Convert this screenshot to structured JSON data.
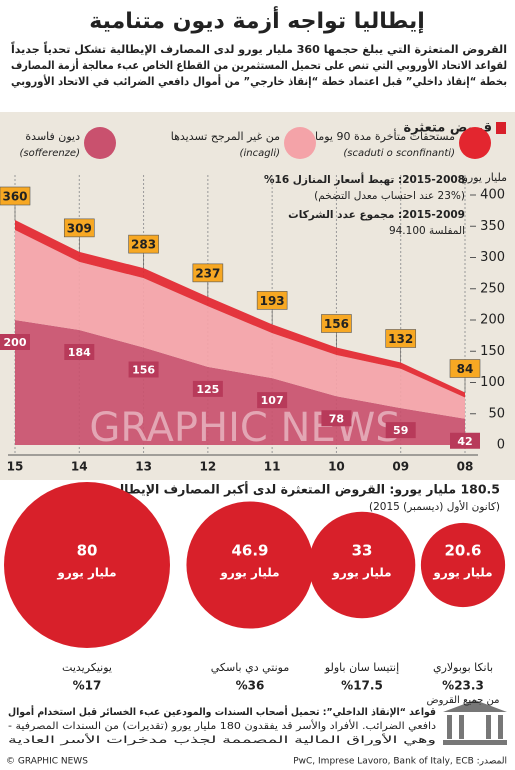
{
  "title": "إيطاليا تواجه أزمة ديون متنامية",
  "intro": [
    "القروض المتعثرة التي يبلغ حجمها 360 مليار يورو لدى المصارف الإيطالية تشكل تحدياً جديداً",
    "لقواعد الاتحاد الأوروبي التي تنص على تحميل المستثمرين من القطاع الخاص عبء معالجة أزمة المصارف",
    "بخطة “إنقاذ داخلي” قبل اعتماد خطة “إنقاذ خارجي” من أموال دافعي الضرائب في الاتحاد الأوروبي"
  ],
  "watermark": "GRAPHIC NEWS",
  "chart_data": [
    {
      "type": "area",
      "title": "قروض متعثرة",
      "y_label": "مليار يورو",
      "categories": [
        "15",
        "14",
        "13",
        "12",
        "11",
        "10",
        "09",
        "08"
      ],
      "series": [
        {
          "name": "ديون فاسدة",
          "name_it": "(sofferenze)",
          "color": "#c9516e",
          "values": [
            200,
            184,
            156,
            125,
            107,
            78,
            59,
            42
          ]
        },
        {
          "name": "من غير المرجح تسديدها",
          "name_it": "(incagli)",
          "color": "#f4a3a8",
          "values": [
            144,
            109,
            111,
            97,
            72,
            66,
            63,
            34
          ]
        },
        {
          "name": "مستحقات متأخرة مدة 90 يوما",
          "name_it": "(scaduti o sconfinanti)",
          "color": "#e3262f",
          "values": [
            16,
            16,
            16,
            15,
            14,
            12,
            10,
            8
          ]
        }
      ],
      "totals": [
        360,
        309,
        283,
        237,
        193,
        156,
        132,
        84
      ],
      "ylim": [
        0,
        400
      ],
      "yticks": [
        0,
        50,
        100,
        150,
        200,
        250,
        300,
        350,
        400
      ],
      "annotations": [
        "2015-2008: تهبط أسعار المنازل 16%",
        "(23% عند احتساب معدل التضخم)",
        "2015-2009: مجموع عدد الشركات",
        "المفلسة 94.100"
      ]
    },
    {
      "type": "bubble",
      "title": "180.5 مليار يورو: القروض المتعثرة لدى أكبر المصارف الإيطالية",
      "subtitle": "(كانون الأول (ديسمبر) 2015)",
      "categories": [
        "يونيكريديت",
        "مونتي دي باسكي",
        "إنتيسا سان باولو",
        "بانكا بوبولاري"
      ],
      "values": [
        80,
        46.9,
        33,
        20.6
      ],
      "unit": "مليار يورو",
      "color": "#d8202a",
      "shares": [
        17,
        36,
        17.5,
        23.3
      ],
      "share_labels": [
        "%17",
        "%36",
        "%17.5",
        "%23.3"
      ],
      "share_note": "من جميع القروض"
    }
  ],
  "footer": {
    "rules": [
      "قواعد “الإنقاذ الداخلي”: تحميل أصحاب السندات والمودعين عبء الخسائر قبل استخدام أموال",
      "دافعي الضرائب. الأفراد والأسر قد يفقدون 180 مليار يورو (تقديرات) من السندات المصرفية -",
      "وهي الأوراق المالية المصممة لجذب مدخرات الأسر العادية"
    ],
    "bank": "BANK",
    "source": "المصدر: PwC, Imprese Lavoro, Bank of Italy, ECB",
    "credit": "© GRAPHIC NEWS"
  }
}
